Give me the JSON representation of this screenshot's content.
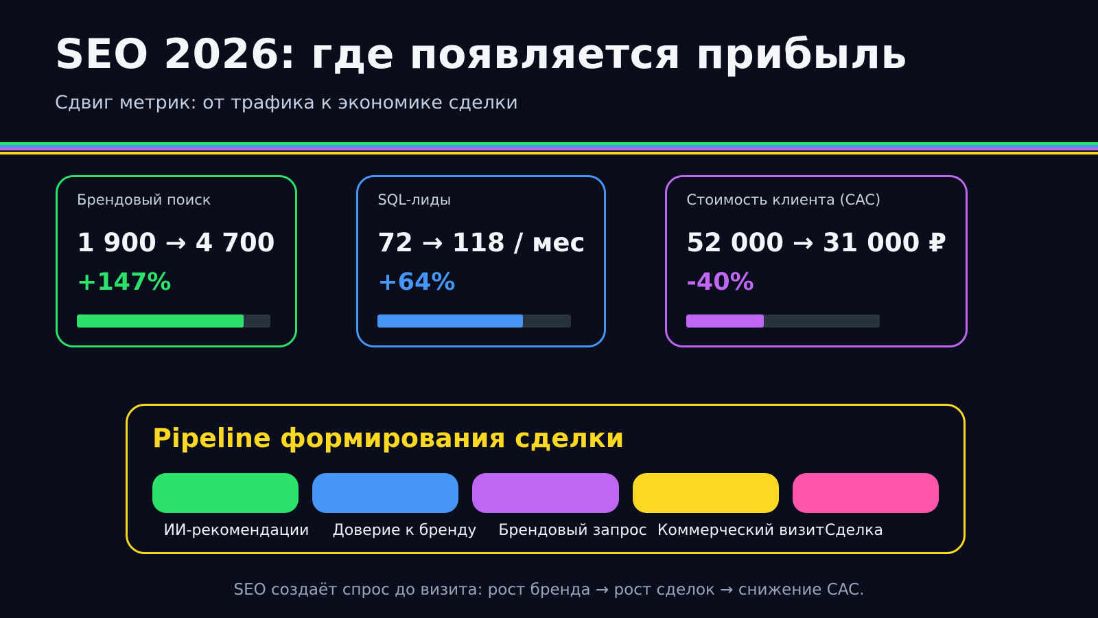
{
  "header": {
    "title": "SEO 2026: где появляется прибыль",
    "subtitle": "Сдвиг метрик: от трафика к экономике сделки"
  },
  "divider": {
    "stripes": [
      "#2ce26b",
      "#4796f5",
      "#bf66f2",
      "#fbd824"
    ]
  },
  "cards": [
    {
      "label": "Брендовый поиск",
      "value": "1 900 → 4 700",
      "delta": "+147%",
      "accent": "#2ce26b",
      "progress_width": "86%"
    },
    {
      "label": "SQL-лиды",
      "value": "72 → 118 / мес",
      "delta": "+64%",
      "accent": "#4796f5",
      "progress_width": "75%"
    },
    {
      "label": "Стоимость клиента (CAC)",
      "value": "52 000 → 31 000 ₽",
      "delta": "-40%",
      "accent": "#bf66f2",
      "progress_width": "40%"
    }
  ],
  "pipeline": {
    "title": "Pipeline формирования сделки",
    "border_color": "#fbd824",
    "stages": [
      {
        "label": "ИИ-рекомендации",
        "color": "#2ce26b"
      },
      {
        "label": "Доверие к бренду",
        "color": "#4796f5"
      },
      {
        "label": "Брендовый запрос",
        "color": "#bf66f2"
      },
      {
        "label": "Коммерческий визит",
        "color": "#fbd824"
      },
      {
        "label": "Сделка",
        "color": "#ff55aa"
      }
    ]
  },
  "footer": {
    "text": "SEO создаёт спрос до визита: рост бренда → рост сделок → снижение CAC."
  },
  "chart_data": {
    "type": "bar",
    "title": "SEO 2026: где появляется прибыль",
    "subtitle": "Сдвиг метрик: от трафика к экономике сделки",
    "series": [
      {
        "name": "Брендовый поиск",
        "before": 1900,
        "after": 4700,
        "change_pct": 147,
        "bar_fill_ratio": 0.86,
        "color": "#2ce26b"
      },
      {
        "name": "SQL-лиды",
        "before": 72,
        "after": 118,
        "unit": "/ мес",
        "change_pct": 64,
        "bar_fill_ratio": 0.75,
        "color": "#4796f5"
      },
      {
        "name": "Стоимость клиента (CAC)",
        "before": 52000,
        "after": 31000,
        "unit": "₽",
        "change_pct": -40,
        "bar_fill_ratio": 0.4,
        "color": "#bf66f2"
      }
    ],
    "pipeline_stages": [
      "ИИ-рекомендации",
      "Доверие к бренду",
      "Брендовый запрос",
      "Коммерческий визит",
      "Сделка"
    ],
    "annotation": "SEO создаёт спрос до визита: рост бренда → рост сделок → снижение CAC.",
    "legend_position": "none",
    "grid": false
  }
}
